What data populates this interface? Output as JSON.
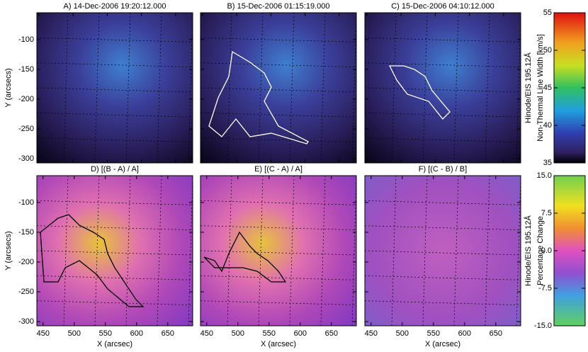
{
  "chart_data": [
    {
      "type": "heatmap",
      "title": "A) 14-Dec-2006 19:20:12.000",
      "ylabel": "Y (arcsecs)",
      "xlim": [
        447,
        675
      ],
      "ylim": [
        -307,
        -55
      ],
      "xticks": [
        450,
        500,
        550,
        600,
        650
      ],
      "yticks": [
        -100,
        -150,
        -200,
        -250,
        -300
      ]
    },
    {
      "type": "heatmap",
      "title": "B) 15-Dec-2006 01:15:19.000",
      "xlim": [
        447,
        675
      ],
      "ylim": [
        -307,
        -55
      ],
      "xticks": [
        450,
        500,
        550,
        600,
        650
      ],
      "yticks": [
        -100,
        -150,
        -200,
        -250,
        -300
      ]
    },
    {
      "type": "heatmap",
      "title": "C) 15-Dec-2006 04:10:12.000",
      "xlim": [
        447,
        675
      ],
      "ylim": [
        -307,
        -55
      ],
      "xticks": [
        450,
        500,
        550,
        600,
        650
      ],
      "yticks": [
        -100,
        -150,
        -200,
        -250,
        -300
      ]
    },
    {
      "type": "heatmap",
      "title": "D) [(B - A) / A]",
      "ylabel": "Y (arcsecs)",
      "xlabel": "X (arcsec)",
      "xlim": [
        440,
        690
      ],
      "ylim": [
        -307,
        -55
      ],
      "xticks": [
        450,
        500,
        550,
        600,
        650
      ],
      "yticks": [
        -100,
        -150,
        -200,
        -250,
        -300
      ]
    },
    {
      "type": "heatmap",
      "title": "E) [(C - A) / A]",
      "xlabel": "X (arcsec)",
      "xlim": [
        440,
        690
      ],
      "ylim": [
        -307,
        -55
      ],
      "xticks": [
        450,
        500,
        550,
        600,
        650
      ],
      "yticks": [
        -100,
        -150,
        -200,
        -250,
        -300
      ]
    },
    {
      "type": "heatmap",
      "title": "F) [(C - B) / B]",
      "xlabel": "X (arcsec)",
      "xlim": [
        440,
        690
      ],
      "ylim": [
        -307,
        -55
      ],
      "xticks": [
        450,
        500,
        550,
        600,
        650
      ],
      "yticks": [
        -100,
        -150,
        -200,
        -250,
        -300
      ]
    }
  ],
  "colorbars": [
    {
      "label": "Hinode/EIS 195.12Å",
      "sublabel": "Non-Thermal Line Width [km/s]",
      "ylim": [
        35,
        55
      ],
      "yticks": [
        35,
        40,
        45,
        50,
        55
      ]
    },
    {
      "label": "Hinode/EIS 195.12Å",
      "sublabel": "Percentage Change",
      "ylim": [
        -15,
        15
      ],
      "yticks": [
        {
          "value": 15,
          "label": "15.0"
        },
        {
          "value": 7.5,
          "label": "7.5"
        },
        {
          "value": 0,
          "label": "0.0"
        },
        {
          "value": -7.5,
          "label": "-7.5"
        },
        {
          "value": -15,
          "label": "-15.0"
        }
      ]
    }
  ]
}
